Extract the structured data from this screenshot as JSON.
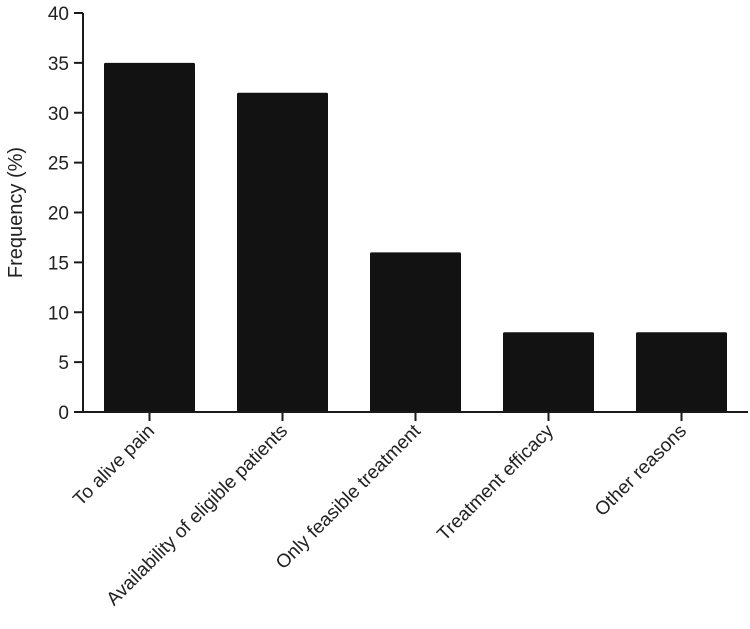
{
  "chart_data": {
    "type": "bar",
    "title": "",
    "xlabel": "",
    "ylabel": "Frequency (%)",
    "categories": [
      "To alive pain",
      "Availability of eligible patients",
      "Only feasible treatment",
      "Treatment efficacy",
      "Other reasons"
    ],
    "values": [
      35,
      32,
      16,
      8,
      8
    ],
    "ylim": [
      0,
      40
    ],
    "yticks": [
      0,
      5,
      10,
      15,
      20,
      25,
      30,
      35,
      40
    ],
    "grid": false,
    "legend": "none",
    "colors": {
      "bar": "#121212",
      "axis": "#1a1a1a",
      "text": "#222222",
      "background": "#ffffff"
    }
  }
}
